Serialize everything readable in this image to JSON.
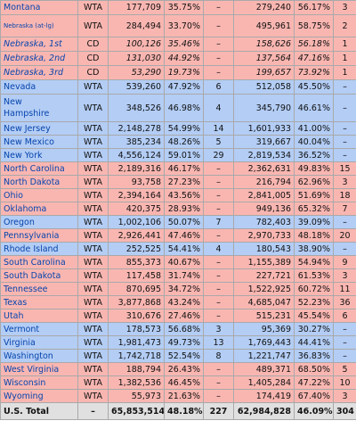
{
  "table": {
    "rows": [
      [
        "Montana",
        "WTA",
        "177,709",
        "35.75%",
        "–",
        "279,240",
        "56.17%",
        "3"
      ],
      [
        "Nebraska (at-lg)",
        "WTA",
        "284,494",
        "33.70%",
        "–",
        "495,961",
        "58.75%",
        "2"
      ],
      [
        "Nebraska, 1st",
        "CD",
        "100,126",
        "35.46%",
        "–",
        "158,626",
        "56.18%",
        "1"
      ],
      [
        "Nebraska, 2nd",
        "CD",
        "131,030",
        "44.92%",
        "–",
        "137,564",
        "47.16%",
        "1"
      ],
      [
        "Nebraska, 3rd",
        "CD",
        "53,290",
        "19.73%",
        "–",
        "199,657",
        "73.92%",
        "1"
      ],
      [
        "Nevada",
        "WTA",
        "539,260",
        "47.92%",
        "6",
        "512,058",
        "45.50%",
        "–"
      ],
      [
        "New Hampshire",
        "WTA",
        "348,526",
        "46.98%",
        "4",
        "345,790",
        "46.61%",
        "–"
      ],
      [
        "New Jersey",
        "WTA",
        "2,148,278",
        "54.99%",
        "14",
        "1,601,933",
        "41.00%",
        "–"
      ],
      [
        "New Mexico",
        "WTA",
        "385,234",
        "48.26%",
        "5",
        "319,667",
        "40.04%",
        "–"
      ],
      [
        "New York",
        "WTA",
        "4,556,124",
        "59.01%",
        "29",
        "2,819,534",
        "36.52%",
        "–"
      ],
      [
        "North Carolina",
        "WTA",
        "2,189,316",
        "46.17%",
        "–",
        "2,362,631",
        "49.83%",
        "15"
      ],
      [
        "North Dakota",
        "WTA",
        "93,758",
        "27.23%",
        "–",
        "216,794",
        "62.96%",
        "3"
      ],
      [
        "Ohio",
        "WTA",
        "2,394,164",
        "43.56%",
        "–",
        "2,841,005",
        "51.69%",
        "18"
      ],
      [
        "Oklahoma",
        "WTA",
        "420,375",
        "28.93%",
        "–",
        "949,136",
        "65.32%",
        "7"
      ],
      [
        "Oregon",
        "WTA",
        "1,002,106",
        "50.07%",
        "7",
        "782,403",
        "39.09%",
        "–"
      ],
      [
        "Pennsylvania",
        "WTA",
        "2,926,441",
        "47.46%",
        "–",
        "2,970,733",
        "48.18%",
        "20"
      ],
      [
        "Rhode Island",
        "WTA",
        "252,525",
        "54.41%",
        "4",
        "180,543",
        "38.90%",
        "–"
      ],
      [
        "South Carolina",
        "WTA",
        "855,373",
        "40.67%",
        "–",
        "1,155,389",
        "54.94%",
        "9"
      ],
      [
        "South Dakota",
        "WTA",
        "117,458",
        "31.74%",
        "–",
        "227,721",
        "61.53%",
        "3"
      ],
      [
        "Tennessee",
        "WTA",
        "870,695",
        "34.72%",
        "–",
        "1,522,925",
        "60.72%",
        "11"
      ],
      [
        "Texas",
        "WTA",
        "3,877,868",
        "43.24%",
        "–",
        "4,685,047",
        "52.23%",
        "36"
      ],
      [
        "Utah",
        "WTA",
        "310,676",
        "27.46%",
        "–",
        "515,231",
        "45.54%",
        "6"
      ],
      [
        "Vermont",
        "WTA",
        "178,573",
        "56.68%",
        "3",
        "95,369",
        "30.27%",
        "–"
      ],
      [
        "Virginia",
        "WTA",
        "1,981,473",
        "49.73%",
        "13",
        "1,769,443",
        "44.41%",
        "–"
      ],
      [
        "Washington",
        "WTA",
        "1,742,718",
        "52.54%",
        "8",
        "1,221,747",
        "36.83%",
        "–"
      ],
      [
        "West Virginia",
        "WTA",
        "188,794",
        "26.43%",
        "–",
        "489,371",
        "68.50%",
        "5"
      ],
      [
        "Wisconsin",
        "WTA",
        "1,382,536",
        "46.45%",
        "–",
        "1,405,284",
        "47.22%",
        "10"
      ],
      [
        "Wyoming",
        "WTA",
        "55,973",
        "21.63%",
        "–",
        "174,419",
        "67.40%",
        "3"
      ]
    ],
    "total": [
      "U.S. Total",
      "–",
      "65,853,514",
      "48.18%",
      "227",
      "62,984,828",
      "46.09%",
      "304"
    ]
  }
}
